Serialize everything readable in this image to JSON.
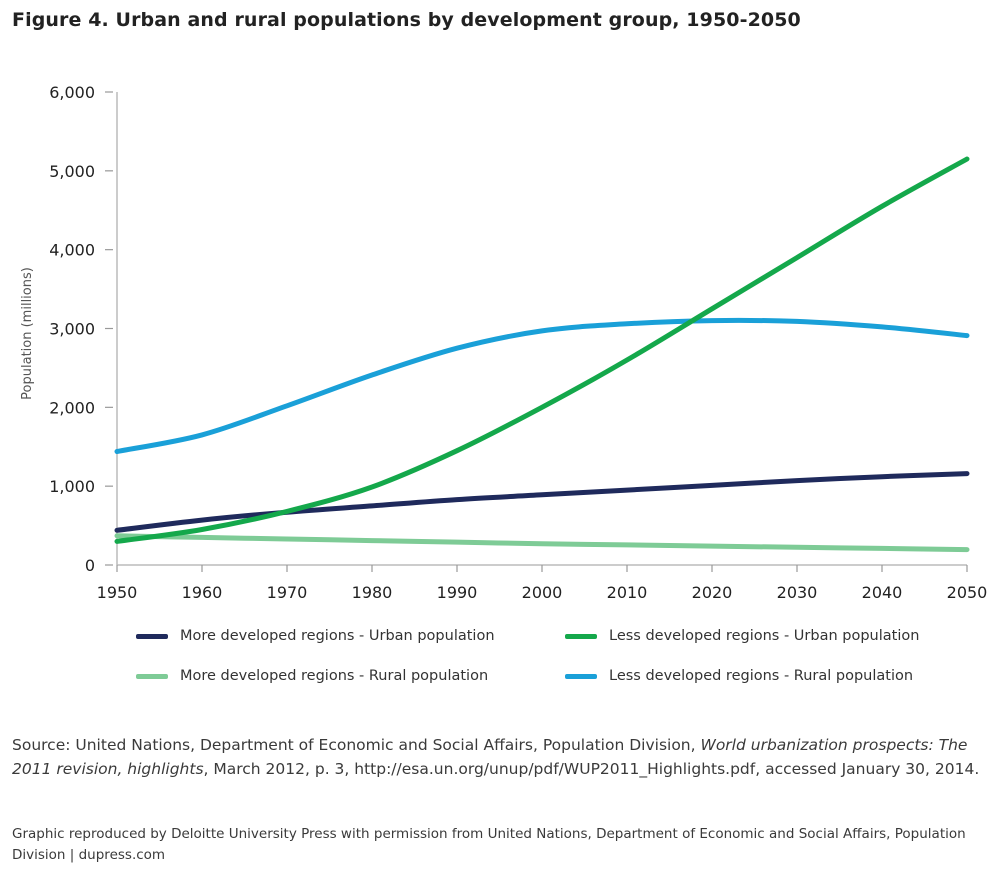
{
  "title": "Figure 4. Urban and rural populations by development group, 1950-2050",
  "chart_data": {
    "type": "line",
    "title": "Figure 4. Urban and rural populations by development group, 1950-2050",
    "xlabel": "",
    "ylabel": "Population (millions)",
    "x": [
      1950,
      1960,
      1970,
      1980,
      1990,
      2000,
      2010,
      2020,
      2030,
      2040,
      2050
    ],
    "x_tick_labels": [
      "1950",
      "1960",
      "1970",
      "1980",
      "1990",
      "2000",
      "2010",
      "2020",
      "2030",
      "2040",
      "2050"
    ],
    "y_tick_labels": [
      "0",
      "1,000",
      "2,000",
      "3,000",
      "4,000",
      "5,000",
      "6,000"
    ],
    "y_ticks": [
      0,
      1000,
      2000,
      3000,
      4000,
      5000,
      6000
    ],
    "xlim": [
      1950,
      2050
    ],
    "ylim": [
      0,
      6000
    ],
    "grid": false,
    "legend_position": "bottom",
    "series": [
      {
        "name": "More developed regions - Urban population",
        "color": "#1f2a5c",
        "values": [
          440,
          570,
          670,
          750,
          830,
          890,
          950,
          1010,
          1070,
          1120,
          1160
        ]
      },
      {
        "name": "Less developed regions - Urban population",
        "color": "#14a84b",
        "values": [
          300,
          450,
          680,
          990,
          1450,
          2000,
          2600,
          3250,
          3900,
          4550,
          5150
        ]
      },
      {
        "name": "More developed regions - Rural population",
        "color": "#7ecb96",
        "values": [
          370,
          350,
          330,
          310,
          290,
          270,
          255,
          240,
          225,
          210,
          195
        ]
      },
      {
        "name": "Less developed regions - Rural population",
        "color": "#1aa0d8",
        "values": [
          1440,
          1650,
          2020,
          2410,
          2750,
          2970,
          3060,
          3100,
          3090,
          3020,
          2910
        ]
      }
    ]
  },
  "source": {
    "prefix": "Source: United Nations, Department of Economic and Social Affairs, Population Division, ",
    "italic": "World urbanization prospects: The 2011 revision, highlights",
    "suffix": ", March 2012, p. 3, http://esa.un.org/unup/pdf/WUP2011_Highlights.pdf, accessed January 30, 2014."
  },
  "credit": "Graphic reproduced by Deloitte University Press with permission from United Nations, Department of Economic and Social Affairs, Population Division | dupress.com"
}
